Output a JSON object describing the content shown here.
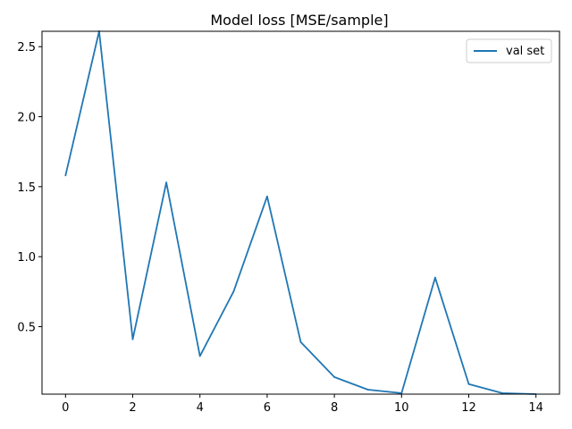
{
  "chart_data": {
    "type": "line",
    "title": "Model loss [MSE/sample]",
    "xlabel": "",
    "ylabel": "",
    "xlim": [
      -0.7,
      14.7
    ],
    "ylim": [
      0.018,
      2.61
    ],
    "xticks": [
      0,
      2,
      4,
      6,
      8,
      10,
      12,
      14
    ],
    "yticks": [
      0.5,
      1.0,
      1.5,
      2.0,
      2.5
    ],
    "ytick_labels": [
      "0.5",
      "1.0",
      "1.5",
      "2.0",
      "2.5"
    ],
    "grid": false,
    "legend_position": "top-right",
    "series": [
      {
        "name": "val set",
        "color": "#1f77b4",
        "x": [
          0,
          1,
          2,
          3,
          4,
          5,
          6,
          7,
          8,
          9,
          10,
          11,
          12,
          13,
          14
        ],
        "y": [
          1.58,
          2.61,
          0.41,
          1.53,
          0.29,
          0.75,
          1.43,
          0.39,
          0.14,
          0.05,
          0.025,
          0.85,
          0.09,
          0.025,
          0.018
        ]
      }
    ]
  }
}
